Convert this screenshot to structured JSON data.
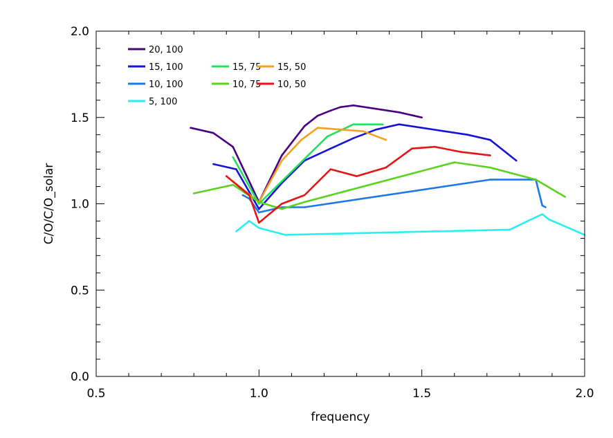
{
  "chart_data": {
    "type": "line",
    "title": "",
    "xlabel": "frequency",
    "ylabel": "C/O/C/O_solar",
    "xlim": [
      0.5,
      2.0
    ],
    "ylim": [
      0.0,
      2.0
    ],
    "x_major_ticks": [
      0.5,
      1.0,
      1.5,
      2.0
    ],
    "y_major_ticks": [
      0.0,
      0.5,
      1.0,
      1.5,
      2.0
    ],
    "x_tick_labels": [
      "0.5",
      "1.0",
      "1.5",
      "2.0"
    ],
    "y_tick_labels": [
      "0.0",
      "0.5",
      "1.0",
      "1.5",
      "2.0"
    ],
    "grid": false,
    "legend_position": "top-left",
    "series": [
      {
        "name": "20, 100",
        "color": "#4b0082",
        "x": [
          0.79,
          0.86,
          0.92,
          1.0,
          1.07,
          1.14,
          1.18,
          1.22,
          1.25,
          1.29,
          1.36,
          1.43,
          1.5
        ],
        "y": [
          1.44,
          1.41,
          1.33,
          1.01,
          1.28,
          1.45,
          1.51,
          1.54,
          1.56,
          1.57,
          1.55,
          1.53,
          1.5
        ]
      },
      {
        "name": "15, 100",
        "color": "#1414dc",
        "x": [
          0.86,
          0.93,
          1.0,
          1.07,
          1.14,
          1.22,
          1.29,
          1.36,
          1.43,
          1.5,
          1.57,
          1.64,
          1.71,
          1.79
        ],
        "y": [
          1.23,
          1.2,
          0.97,
          1.12,
          1.25,
          1.32,
          1.38,
          1.43,
          1.46,
          1.44,
          1.42,
          1.4,
          1.37,
          1.25
        ]
      },
      {
        "name": "15, 75",
        "color": "#22e060",
        "x": [
          0.92,
          1.0,
          1.07,
          1.14,
          1.21,
          1.29,
          1.38
        ],
        "y": [
          1.27,
          1.0,
          1.13,
          1.26,
          1.39,
          1.46,
          1.46
        ]
      },
      {
        "name": "15, 50",
        "color": "#f5a020",
        "x": [
          0.92,
          1.0,
          1.07,
          1.13,
          1.18,
          1.25,
          1.32,
          1.39
        ],
        "y": [
          1.13,
          1.01,
          1.25,
          1.37,
          1.44,
          1.43,
          1.42,
          1.37
        ]
      },
      {
        "name": "10, 100",
        "color": "#1e78e6",
        "x": [
          0.95,
          0.97,
          1.0,
          1.07,
          1.14,
          1.71,
          1.85,
          1.87,
          1.88
        ],
        "y": [
          1.05,
          1.03,
          0.95,
          0.98,
          0.98,
          1.14,
          1.14,
          0.99,
          0.98
        ]
      },
      {
        "name": "10, 75",
        "color": "#5ad21e",
        "x": [
          0.8,
          0.92,
          1.0,
          1.07,
          1.14,
          1.6,
          1.71,
          1.85,
          1.94
        ],
        "y": [
          1.06,
          1.11,
          1.01,
          0.97,
          1.01,
          1.24,
          1.21,
          1.14,
          1.04
        ]
      },
      {
        "name": "10, 50",
        "color": "#e61414",
        "x": [
          0.9,
          0.97,
          1.0,
          1.07,
          1.14,
          1.22,
          1.3,
          1.39,
          1.47,
          1.54,
          1.62,
          1.71
        ],
        "y": [
          1.16,
          1.05,
          0.89,
          1.0,
          1.05,
          1.2,
          1.16,
          1.21,
          1.32,
          1.33,
          1.3,
          1.28
        ]
      },
      {
        "name": "5, 100",
        "color": "#28f0f0",
        "x": [
          0.93,
          0.97,
          1.0,
          1.08,
          1.77,
          1.87,
          1.89,
          2.0
        ],
        "y": [
          0.84,
          0.9,
          0.86,
          0.82,
          0.85,
          0.94,
          0.91,
          0.82
        ]
      }
    ],
    "legend_rows": [
      [
        "20, 100"
      ],
      [
        "15, 100",
        "15, 75",
        "15, 50"
      ],
      [
        "10, 100",
        "10, 75",
        "10, 50"
      ],
      [
        "5, 100"
      ]
    ]
  }
}
